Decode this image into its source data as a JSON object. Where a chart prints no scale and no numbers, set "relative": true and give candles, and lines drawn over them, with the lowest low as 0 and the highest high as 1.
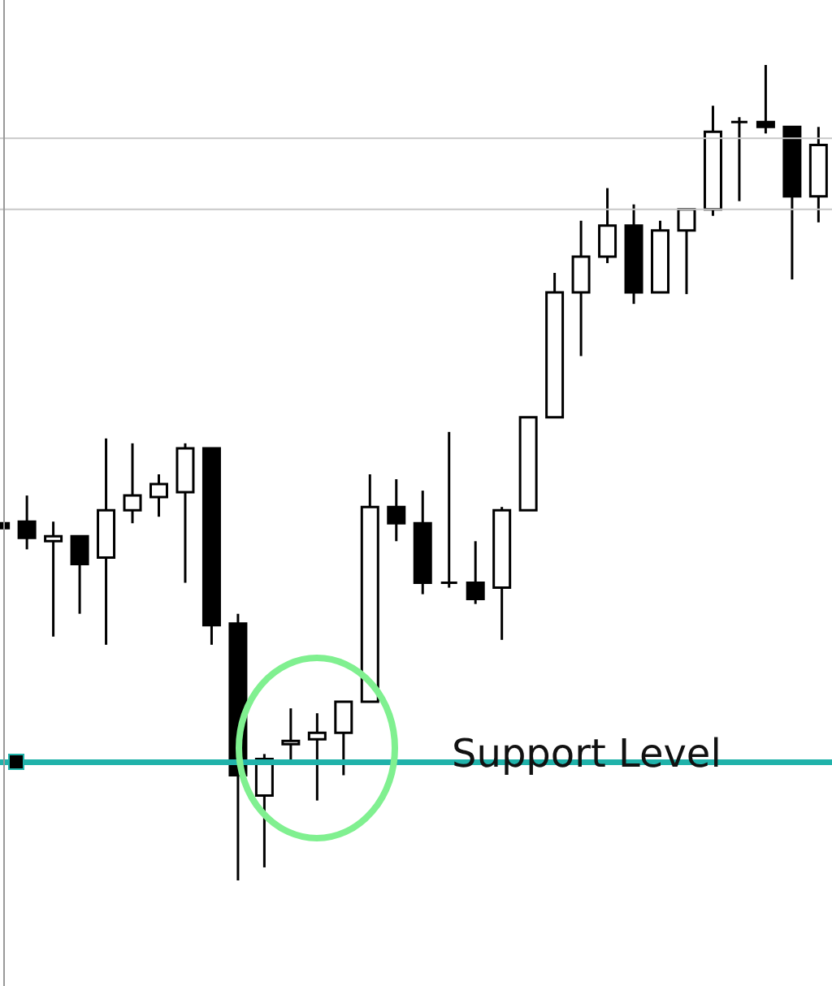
{
  "chart_data": {
    "type": "candlestick",
    "relative": true,
    "categories": [
      null,
      null,
      null,
      null,
      null,
      null,
      null,
      null,
      null,
      null,
      null,
      null,
      null,
      null,
      null,
      null,
      null,
      null,
      null,
      null,
      null,
      null,
      null,
      null,
      null,
      null,
      null,
      null,
      null,
      null,
      null,
      null
    ],
    "ohlc": [
      [
        0.438,
        0.438,
        0.432,
        0.432
      ],
      [
        0.44,
        0.472,
        0.406,
        0.42
      ],
      [
        0.416,
        0.44,
        0.299,
        0.422
      ],
      [
        0.422,
        0.422,
        0.327,
        0.388
      ],
      [
        0.396,
        0.542,
        0.289,
        0.454
      ],
      [
        0.454,
        0.536,
        0.438,
        0.472
      ],
      [
        0.47,
        0.498,
        0.446,
        0.486
      ],
      [
        0.476,
        0.536,
        0.365,
        0.53
      ],
      [
        0.53,
        0.53,
        0.289,
        0.313
      ],
      [
        0.315,
        0.327,
        0,
        0.129
      ],
      [
        0.104,
        0.155,
        0.016,
        0.149
      ],
      [
        0.167,
        0.211,
        0.143,
        0.171
      ],
      [
        0.173,
        0.205,
        0.098,
        0.181
      ],
      [
        0.181,
        0.219,
        0.129,
        0.219
      ],
      [
        0.219,
        0.498,
        0.219,
        0.458
      ],
      [
        0.458,
        0.492,
        0.416,
        0.438
      ],
      [
        0.438,
        0.478,
        0.351,
        0.365
      ],
      [
        0.365,
        0.55,
        0.359,
        0.365
      ],
      [
        0.365,
        0.416,
        0.339,
        0.345
      ],
      [
        0.359,
        0.458,
        0.295,
        0.454
      ],
      [
        0.454,
        0.568,
        0.454,
        0.568
      ],
      [
        0.568,
        0.745,
        0.568,
        0.721
      ],
      [
        0.721,
        0.809,
        0.643,
        0.765
      ],
      [
        0.765,
        0.849,
        0.757,
        0.803
      ],
      [
        0.803,
        0.829,
        0.707,
        0.721
      ],
      [
        0.721,
        0.809,
        0.721,
        0.797
      ],
      [
        0.797,
        0.823,
        0.719,
        0.823
      ],
      [
        0.823,
        0.95,
        0.815,
        0.918
      ],
      [
        0.93,
        0.936,
        0.833,
        0.93
      ],
      [
        0.93,
        1,
        0.916,
        0.924
      ],
      [
        0.924,
        0.924,
        0.737,
        0.839
      ],
      [
        0.839,
        0.924,
        0.807,
        0.902
      ]
    ],
    "ref_lines": [
      {
        "axis": "y",
        "value": 0.145,
        "label": "Support Level",
        "color": "#20b2aa"
      },
      {
        "axis": "y",
        "value": 0.91,
        "color": "#c8c8c8"
      },
      {
        "axis": "y",
        "value": 0.823,
        "color": "#c8c8c8"
      }
    ]
  }
}
